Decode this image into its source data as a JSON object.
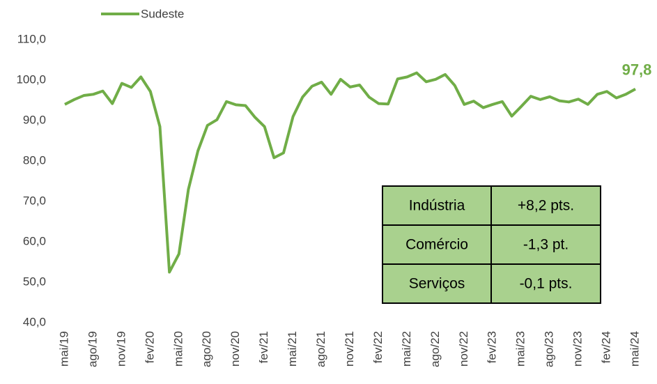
{
  "chart_data": {
    "type": "line",
    "categories": [
      "mai/19",
      null,
      null,
      "ago/19",
      null,
      null,
      "nov/19",
      null,
      null,
      "fev/20",
      null,
      null,
      "mai/20",
      null,
      null,
      "ago/20",
      null,
      null,
      "nov/20",
      null,
      null,
      "fev/21",
      null,
      null,
      "mai/21",
      null,
      null,
      "ago/21",
      null,
      null,
      "nov/21",
      null,
      null,
      "fev/22",
      null,
      null,
      "mai/22",
      null,
      null,
      "ago/22",
      null,
      null,
      "nov/22",
      null,
      null,
      "fev/23",
      null,
      null,
      "mai/23",
      null,
      null,
      "ago/23",
      null,
      null,
      "nov/23",
      null,
      null,
      "fev/24",
      null,
      null,
      "mai/24"
    ],
    "series": [
      {
        "name": "Sudeste",
        "color": "#70ad47",
        "values": [
          94.0,
          95.2,
          96.2,
          96.5,
          97.3,
          94.2,
          99.2,
          98.2,
          100.8,
          97.2,
          88.5,
          52.5,
          57.0,
          73.0,
          82.5,
          88.8,
          90.2,
          94.7,
          93.9,
          93.7,
          90.8,
          88.5,
          80.8,
          82.0,
          91.0,
          95.8,
          98.5,
          99.5,
          96.5,
          100.2,
          98.3,
          98.8,
          95.8,
          94.2,
          94.1,
          100.3,
          100.8,
          101.8,
          99.6,
          100.2,
          101.4,
          98.7,
          94.0,
          94.8,
          93.2,
          94.0,
          94.7,
          91.1,
          93.5,
          96.0,
          95.2,
          95.9,
          94.9,
          94.6,
          95.3,
          94.0,
          96.5,
          97.2,
          95.6,
          96.5,
          97.8
        ],
        "value_labels": [
          null,
          null,
          null,
          null,
          null,
          null,
          null,
          null,
          null,
          null,
          null,
          null,
          null,
          null,
          null,
          null,
          null,
          null,
          null,
          null,
          null,
          null,
          null,
          null,
          null,
          null,
          null,
          null,
          null,
          null,
          null,
          null,
          null,
          null,
          null,
          null,
          null,
          null,
          null,
          null,
          null,
          null,
          null,
          null,
          null,
          null,
          null,
          null,
          null,
          null,
          null,
          null,
          null,
          null,
          null,
          null,
          null,
          null,
          null,
          null,
          "97,8"
        ]
      }
    ],
    "ylim": [
      40,
      110
    ],
    "yticks": [
      {
        "value": 40,
        "label": "40,0"
      },
      {
        "value": 50,
        "label": "50,0"
      },
      {
        "value": 60,
        "label": "60,0"
      },
      {
        "value": 70,
        "label": "70,0"
      },
      {
        "value": 80,
        "label": "80,0"
      },
      {
        "value": 90,
        "label": "90,0"
      },
      {
        "value": 100,
        "label": "100,0"
      },
      {
        "value": 110,
        "label": "110,0"
      }
    ],
    "grid": false,
    "legend": "top-left"
  },
  "table": {
    "rows": [
      [
        "Indústria",
        "+8,2 pts."
      ],
      [
        "Comércio",
        "-1,3 pt."
      ],
      [
        "Serviços",
        "-0,1 pts."
      ]
    ]
  }
}
